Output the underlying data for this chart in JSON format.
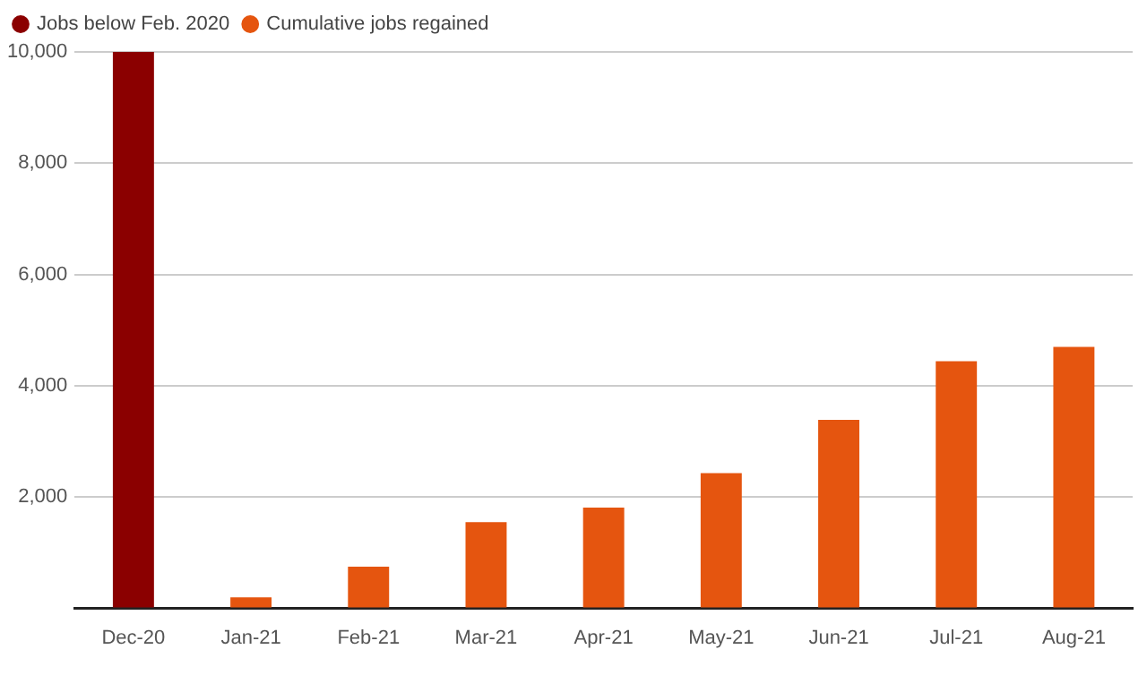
{
  "chart_data": {
    "type": "bar",
    "categories": [
      "Dec-20",
      "Jan-21",
      "Feb-21",
      "Mar-21",
      "Apr-21",
      "May-21",
      "Jun-21",
      "Jul-21",
      "Aug-21"
    ],
    "series": [
      {
        "name": "Jobs below Feb. 2020",
        "color": "#8b0000",
        "values": [
          10000,
          null,
          null,
          null,
          null,
          null,
          null,
          null,
          null
        ]
      },
      {
        "name": "Cumulative jobs regained",
        "color": "#e5550f",
        "values": [
          null,
          200,
          750,
          1550,
          1810,
          2430,
          3390,
          4440,
          4700
        ]
      }
    ],
    "ylim": [
      0,
      10000
    ],
    "yticks": [
      {
        "value": 0,
        "label": null
      },
      {
        "value": 2000,
        "label": "2,000"
      },
      {
        "value": 4000,
        "label": "4,000"
      },
      {
        "value": 6000,
        "label": "6,000"
      },
      {
        "value": 8000,
        "label": "8,000"
      },
      {
        "value": 10000,
        "label": "10,000"
      }
    ],
    "grid": "y",
    "legend": "top left"
  }
}
